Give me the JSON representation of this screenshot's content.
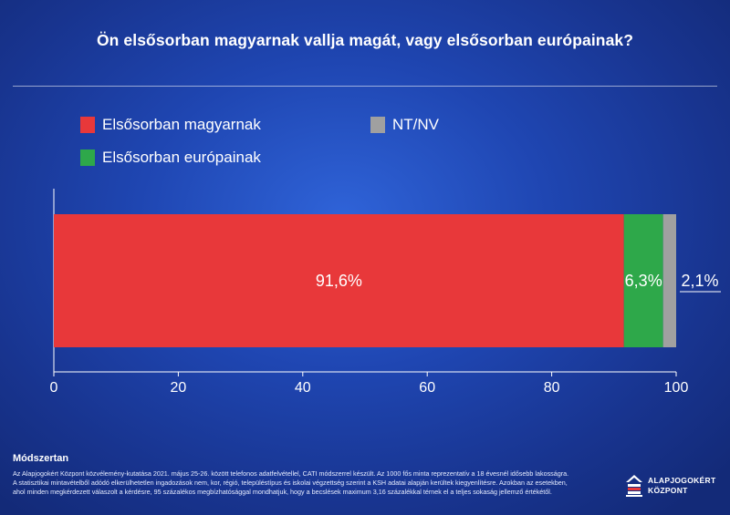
{
  "header": {
    "title": "Ön elsősorban magyarnak vallja magát, vagy elsősorban európainak?"
  },
  "legend": [
    {
      "label": "Elsősorban magyarnak",
      "color": "#e8383a"
    },
    {
      "label": "Elsősorban európainak",
      "color": "#2ea84a"
    },
    {
      "label": "NT/NV",
      "color": "#a0a0a0"
    }
  ],
  "chart_data": {
    "type": "bar",
    "orientation": "horizontal",
    "stacked": true,
    "categories": [
      ""
    ],
    "series": [
      {
        "name": "Elsősorban magyarnak",
        "values": [
          91.6
        ],
        "label": "91,6%",
        "color": "#e8383a"
      },
      {
        "name": "Elsősorban európainak",
        "values": [
          6.3
        ],
        "label": "6,3%",
        "color": "#2ea84a"
      },
      {
        "name": "NT/NV",
        "values": [
          2.1
        ],
        "label": "2,1%",
        "color": "#a0a0a0"
      }
    ],
    "xlim": [
      0,
      100
    ],
    "xticks": [
      0,
      20,
      40,
      60,
      80,
      100
    ],
    "grid": false,
    "legend_position": "top-left"
  },
  "footer": {
    "method_title": "Módszertan",
    "method_text": "Az Alapjogokért Központ közvélemény-kutatása 2021. május 25-26. között telefonos adatfelvétellel, CATI módszerrel készült. Az 1000 fős minta reprezentatív a 18 évesnél idősebb lakosságra. A statisztikai mintavételből adódó elkerülhetetlen ingadozások nem, kor, régió, településtípus és iskolai végzettség szerint a KSH adatai alapján kerültek kiegyenlítésre. Azokban az esetekben, ahol minden megkérdezett válaszolt a kérdésre, 95 százalékos megbízhatósággal mondhatjuk, hogy a becslések maximum 3,16 százalékkal térnek el a teljes sokaság jellemző értékétől.",
    "logo_line1": "ALAPJOGOKÉRT",
    "logo_line2": "KÖZPONT"
  }
}
